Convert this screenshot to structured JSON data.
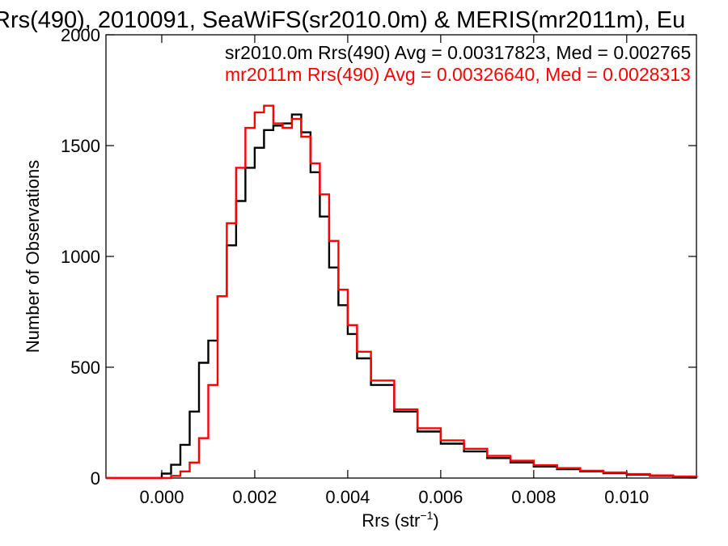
{
  "chart_data": {
    "type": "line",
    "title": "Rrs(490), 2010091, SeaWiFS(sr2010.0m) & MERIS(mr2011m), Eu",
    "xlabel": "Rrs (str",
    "xlabel_sup": "−1",
    "xlabel_end": ")",
    "ylabel": "Number of Observations",
    "xlim": [
      -0.0012,
      0.0115
    ],
    "ylim": [
      0,
      2000
    ],
    "x_ticks": [
      0.0,
      0.002,
      0.004,
      0.006,
      0.008,
      0.01
    ],
    "x_tick_labels": [
      "0.000",
      "0.002",
      "0.004",
      "0.006",
      "0.008",
      "0.010"
    ],
    "y_ticks": [
      0,
      500,
      1000,
      1500,
      2000
    ],
    "y_tick_labels": [
      "0",
      "500",
      "1000",
      "1500",
      "2000"
    ],
    "grid": false,
    "annotations": [
      {
        "text": "sr2010.0m Rrs(490) Avg = 0.00317823, Med = 0.002765",
        "color": "#000000"
      },
      {
        "text": "mr2011m Rrs(490) Avg = 0.00326640, Med = 0.0028313",
        "color": "#ff0000"
      }
    ],
    "x": [
      -0.0012,
      -0.0008,
      -0.0004,
      0.0,
      0.0002,
      0.0004,
      0.0006,
      0.0008,
      0.001,
      0.0012,
      0.0014,
      0.0016,
      0.0018,
      0.002,
      0.0022,
      0.0024,
      0.0026,
      0.0028,
      0.003,
      0.0032,
      0.0034,
      0.0036,
      0.0038,
      0.004,
      0.0042,
      0.0045,
      0.005,
      0.0055,
      0.006,
      0.0065,
      0.007,
      0.0075,
      0.008,
      0.0085,
      0.009,
      0.0095,
      0.01,
      0.0105,
      0.011,
      0.0115
    ],
    "series": [
      {
        "name": "sr2010.0m",
        "color": "#000000",
        "values": [
          0,
          0,
          0,
          20,
          60,
          150,
          300,
          520,
          620,
          820,
          1050,
          1250,
          1400,
          1490,
          1570,
          1590,
          1600,
          1640,
          1560,
          1380,
          1180,
          950,
          780,
          650,
          540,
          420,
          300,
          210,
          155,
          120,
          90,
          70,
          52,
          40,
          30,
          22,
          15,
          10,
          6,
          2
        ]
      },
      {
        "name": "mr2011m",
        "color": "#ff0000",
        "values": [
          0,
          0,
          0,
          0,
          10,
          30,
          70,
          180,
          420,
          820,
          1150,
          1400,
          1580,
          1650,
          1680,
          1600,
          1580,
          1620,
          1540,
          1420,
          1280,
          1070,
          850,
          690,
          570,
          440,
          310,
          225,
          170,
          132,
          100,
          78,
          58,
          45,
          33,
          25,
          18,
          12,
          7,
          3
        ]
      }
    ]
  }
}
